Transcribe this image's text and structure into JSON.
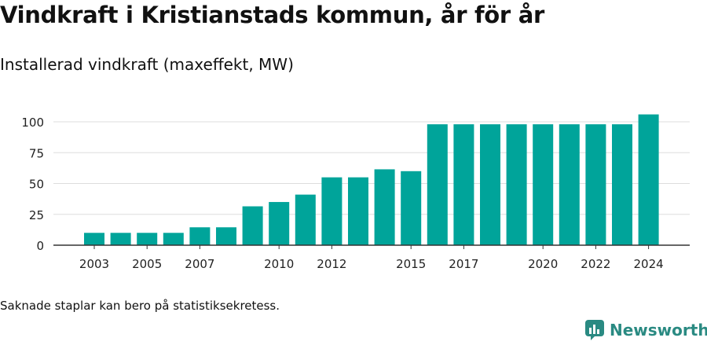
{
  "header": {
    "title": "Vindkraft i Kristianstads kommun, år för år",
    "subtitle": "Installerad vindkraft (maxeffekt, MW)"
  },
  "footer": {
    "note": "Saknade staplar kan bero på statistiksekretess.",
    "brand": "Newsworthy"
  },
  "colors": {
    "bar": "#00a49a",
    "grid": "#dddddd",
    "axis": "#333333",
    "brand": "#2a8a82"
  },
  "chart_data": {
    "type": "bar",
    "title": "Vindkraft i Kristianstads kommun, år för år",
    "ylabel": "Installerad vindkraft (maxeffekt, MW)",
    "xlabel": "",
    "categories": [
      "2003",
      "2004",
      "2005",
      "2006",
      "2007",
      "2008",
      "2009",
      "2010",
      "2011",
      "2012",
      "2013",
      "2014",
      "2015",
      "2016",
      "2017",
      "2018",
      "2019",
      "2020",
      "2021",
      "2022",
      "2023",
      "2024"
    ],
    "values": [
      10,
      10,
      10,
      10,
      14.5,
      14.5,
      31.5,
      35,
      41,
      55,
      55,
      61.5,
      60,
      98,
      98,
      98,
      98,
      98,
      98,
      98,
      98,
      106
    ],
    "x_tick_labels": [
      "2003",
      "2005",
      "2007",
      "2010",
      "2012",
      "2015",
      "2017",
      "2020",
      "2022",
      "2024"
    ],
    "y_ticks": [
      0,
      25,
      50,
      75,
      100
    ],
    "ylim": [
      0,
      115
    ],
    "grid": true
  }
}
